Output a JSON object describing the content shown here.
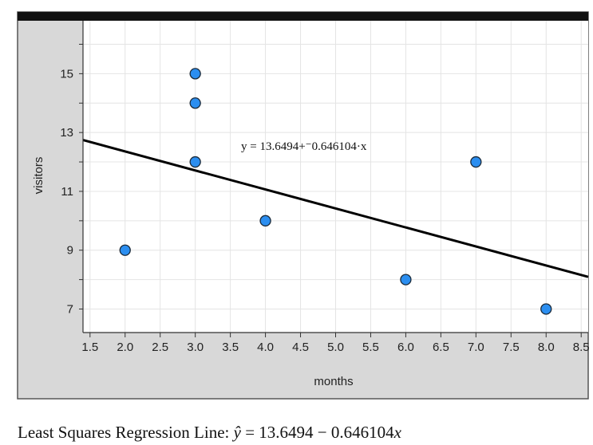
{
  "chart_data": {
    "type": "scatter",
    "xlabel": "months",
    "ylabel": "visitors",
    "xlim": [
      1.4,
      8.6
    ],
    "ylim": [
      6.2,
      16.8
    ],
    "grid": true,
    "x_ticks": [
      "1.5",
      "2.0",
      "2.5",
      "3.0",
      "3.5",
      "4.0",
      "4.5",
      "5.0",
      "5.5",
      "6.0",
      "6.5",
      "7.0",
      "7.5",
      "8.0",
      "8.5"
    ],
    "y_ticks": [
      "7",
      "9",
      "11",
      "13",
      "15"
    ],
    "points": [
      {
        "x": 2.0,
        "y": 9
      },
      {
        "x": 3.0,
        "y": 15
      },
      {
        "x": 3.0,
        "y": 14
      },
      {
        "x": 3.0,
        "y": 12
      },
      {
        "x": 4.0,
        "y": 10
      },
      {
        "x": 6.0,
        "y": 8
      },
      {
        "x": 7.0,
        "y": 12
      },
      {
        "x": 8.0,
        "y": 7
      }
    ],
    "regression": {
      "intercept": 13.6494,
      "slope": -0.646104,
      "label": "y = 13.6494+⁻0.646104·x"
    },
    "point_color": "#2b8ef0",
    "line_color": "#000000"
  },
  "caption": {
    "prefix": "Least Squares Regression Line: ",
    "yhat": "ŷ",
    "equation_rest": " = 13.6494 − 0.646104",
    "var": "x"
  }
}
